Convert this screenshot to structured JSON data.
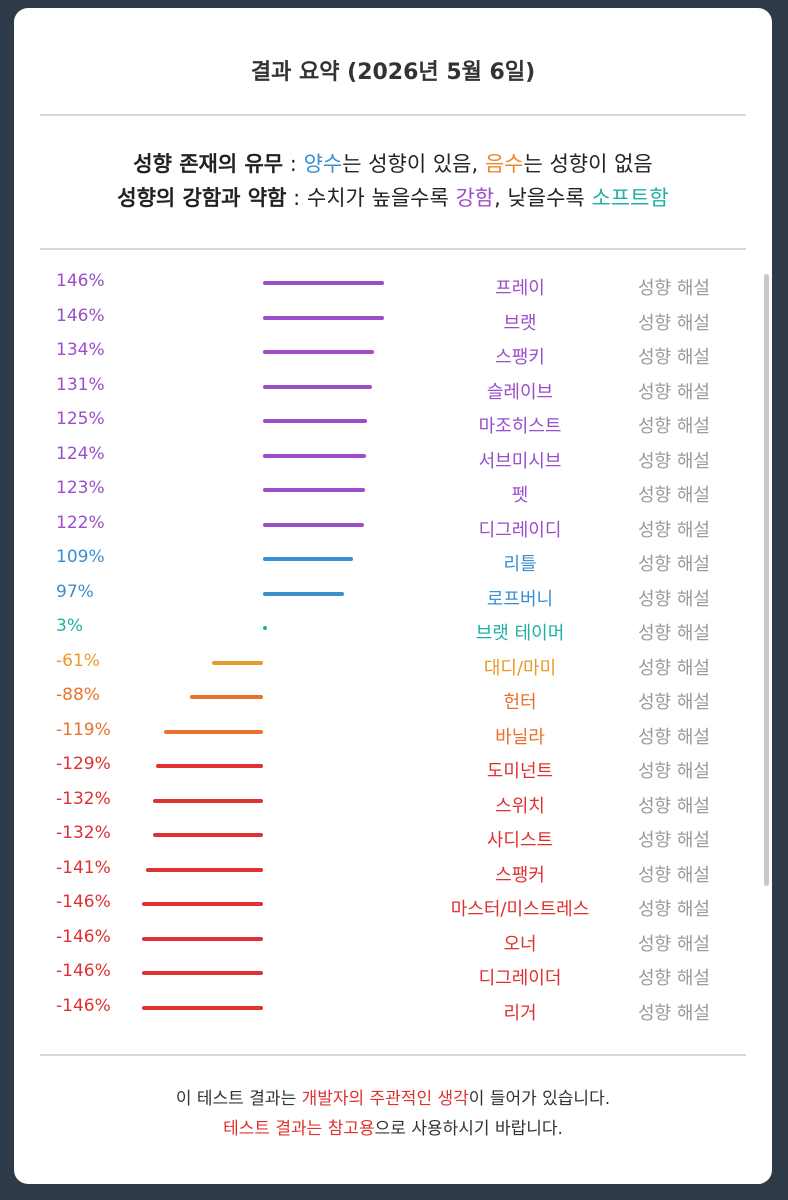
{
  "header": {
    "title": "결과 요약 (2026년 5월 6일)"
  },
  "legend": {
    "line1": {
      "label": "성향 존재의 유무",
      "sep": " : ",
      "positive": "양수",
      "t1": "는 성향이 있음, ",
      "negative": "음수",
      "t2": "는 성향이 없음"
    },
    "line2": {
      "label": "성향의 강함과 약함",
      "sep": " : ",
      "t1": "수치가 높을수록 ",
      "strong": "강함",
      "t2": ", 낮을수록 ",
      "soft": "소프트함"
    }
  },
  "colors": {
    "purple": "#9b4dca",
    "blue": "#3a8fd0",
    "teal": "#1fb0a2",
    "orange": "#e98a2a",
    "dark_orange": "#e8722c",
    "red": "#e03131"
  },
  "results": [
    {
      "pct": "146%",
      "value": 146,
      "name": "프레이",
      "desc": "성향 해설",
      "color": "#9b4dca"
    },
    {
      "pct": "146%",
      "value": 146,
      "name": "브랫",
      "desc": "성향 해설",
      "color": "#9b4dca"
    },
    {
      "pct": "134%",
      "value": 134,
      "name": "스팽키",
      "desc": "성향 해설",
      "color": "#9b4dca"
    },
    {
      "pct": "131%",
      "value": 131,
      "name": "슬레이브",
      "desc": "성향 해설",
      "color": "#9b4dca"
    },
    {
      "pct": "125%",
      "value": 125,
      "name": "마조히스트",
      "desc": "성향 해설",
      "color": "#9b4dca"
    },
    {
      "pct": "124%",
      "value": 124,
      "name": "서브미시브",
      "desc": "성향 해설",
      "color": "#9b4dca"
    },
    {
      "pct": "123%",
      "value": 123,
      "name": "펫",
      "desc": "성향 해설",
      "color": "#9b4dca"
    },
    {
      "pct": "122%",
      "value": 122,
      "name": "디그레이디",
      "desc": "성향 해설",
      "color": "#9b4dca"
    },
    {
      "pct": "109%",
      "value": 109,
      "name": "리틀",
      "desc": "성향 해설",
      "color": "#3a8fd0"
    },
    {
      "pct": "97%",
      "value": 97,
      "name": "로프버니",
      "desc": "성향 해설",
      "color": "#3a8fd0"
    },
    {
      "pct": "3%",
      "value": 3,
      "name": "브랫 테이머",
      "desc": "성향 해설",
      "color": "#1fb0a2"
    },
    {
      "pct": "-61%",
      "value": -61,
      "name": "대디/마미",
      "desc": "성향 해설",
      "color": "#e99a2a"
    },
    {
      "pct": "-88%",
      "value": -88,
      "name": "헌터",
      "desc": "성향 해설",
      "color": "#e8722c"
    },
    {
      "pct": "-119%",
      "value": -119,
      "name": "바닐라",
      "desc": "성향 해설",
      "color": "#e8722c"
    },
    {
      "pct": "-129%",
      "value": -129,
      "name": "도미넌트",
      "desc": "성향 해설",
      "color": "#e03131"
    },
    {
      "pct": "-132%",
      "value": -132,
      "name": "스위치",
      "desc": "성향 해설",
      "color": "#e03131"
    },
    {
      "pct": "-132%",
      "value": -132,
      "name": "사디스트",
      "desc": "성향 해설",
      "color": "#e03131"
    },
    {
      "pct": "-141%",
      "value": -141,
      "name": "스팽커",
      "desc": "성향 해설",
      "color": "#e03131"
    },
    {
      "pct": "-146%",
      "value": -146,
      "name": "마스터/미스트레스",
      "desc": "성향 해설",
      "color": "#e03131"
    },
    {
      "pct": "-146%",
      "value": -146,
      "name": "오너",
      "desc": "성향 해설",
      "color": "#e03131"
    },
    {
      "pct": "-146%",
      "value": -146,
      "name": "디그레이더",
      "desc": "성향 해설",
      "color": "#e03131"
    },
    {
      "pct": "-146%",
      "value": -146,
      "name": "리거",
      "desc": "성향 해설",
      "color": "#e03131"
    }
  ],
  "footer": {
    "line1": {
      "t1": "이 테스트 결과는 ",
      "h1": "개발자의 주관적인 생각",
      "t2": "이 들어가 있습니다."
    },
    "line2": {
      "h1": "테스트 결과는 참고용",
      "t1": "으로 사용하시기 바랍니다."
    }
  }
}
